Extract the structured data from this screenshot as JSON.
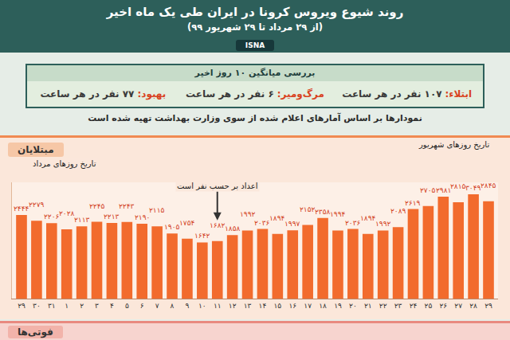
{
  "header": {
    "title": "روند شیوع ویروس کرونا در ایران طی یک ماه اخیر",
    "subtitle": "(از ۲۹ مرداد تا ۲۹ شهریور ۹۹)",
    "logo": "ISNA"
  },
  "summary": {
    "title": "بررسی میانگین ۱۰ روز اخیر",
    "items": [
      {
        "label": "ابتلاء:",
        "value": "۱۰۷ نفر در هر ساعت"
      },
      {
        "label": "مرگ‌ومیر:",
        "value": "۶ نفر در هر ساعت"
      },
      {
        "label": "بهبود:",
        "value": "۷۷ نفر در هر ساعت"
      }
    ]
  },
  "note": "نمودارها بر اساس آمارهای اعلام شده از سوی وزارت بهداشت تهیه شده است",
  "chart_data": {
    "type": "bar",
    "title": "مبتلایان",
    "categories": [
      "۲۹",
      "۳۰",
      "۳۱",
      "۱",
      "۲",
      "۳",
      "۴",
      "۵",
      "۶",
      "۷",
      "۸",
      "۹",
      "۱۰",
      "۱۱",
      "۱۲",
      "۱۳",
      "۱۴",
      "۱۵",
      "۱۶",
      "۱۷",
      "۱۸",
      "۱۹",
      "۲۰",
      "۲۱",
      "۲۲",
      "۲۳",
      "۲۴",
      "۲۵",
      "۲۶",
      "۲۷",
      "۲۸",
      "۲۹"
    ],
    "values": [
      2444,
      2279,
      2206,
      2028,
      2113,
      2245,
      2213,
      2243,
      2190,
      2115,
      1905,
      1754,
      1642,
      1682,
      1858,
      1992,
      2036,
      1894,
      1997,
      2152,
      2358,
      1994,
      2036,
      1894,
      1992,
      2089,
      2619,
      2705,
      2981,
      2815,
      3049,
      2845
    ],
    "value_labels": [
      "۲۴۴۴",
      "۲۲۷۹",
      "۲۲۰۶",
      "۲۰۲۸",
      "۲۱۱۳",
      "۲۲۴۵",
      "۲۲۱۳",
      "۲۲۴۳",
      "۲۱۹۰",
      "۲۱۱۵",
      "۱۹۰۵",
      "۱۷۵۴",
      "۱۶۴۲",
      "۱۶۸۲",
      "۱۸۵۸",
      "۱۹۹۲",
      "۲۰۳۶",
      "۱۸۹۴",
      "۱۹۹۷",
      "۲۱۵۲",
      "۲۳۵۸",
      "۱۹۹۴",
      "۲۰۳۶",
      "۱۸۹۴",
      "۱۹۹۲",
      "۲۰۸۹",
      "۲۶۱۹",
      "۲۷۰۵",
      "۲۹۸۱",
      "۲۸۱۵",
      "۳۰۴۹",
      "۲۸۴۵"
    ],
    "color": "#f26b2d",
    "ylim": [
      0,
      3400
    ],
    "tick_labels": "x",
    "data_labels": true,
    "annotations": [
      "تاریخ روزهای مرداد",
      "اعداد بر حسب نفر است",
      "تاریخ روزهای شهریور"
    ]
  },
  "footer": {
    "title": "فوتی‌ها"
  }
}
